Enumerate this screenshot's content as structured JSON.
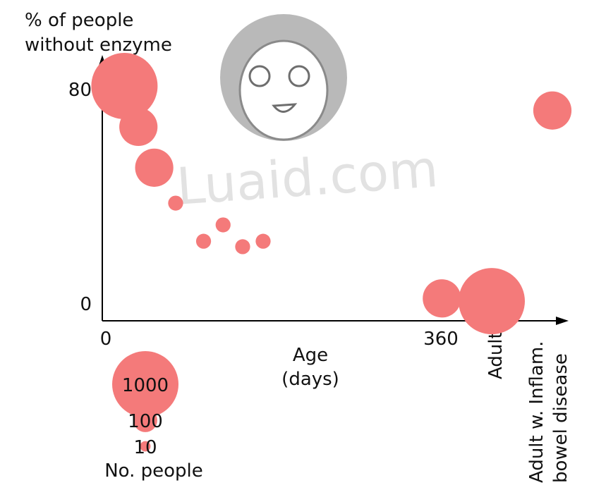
{
  "watermark": "Luaid.com",
  "chart_data": {
    "type": "scatter",
    "title": "",
    "ylabel_line1": "% of people",
    "ylabel_line2": "without enzyme",
    "xlabel_line1": "Age",
    "xlabel_line2": "(days)",
    "y_ticks": [
      "80",
      "0"
    ],
    "x_ticks": [
      "0",
      "360"
    ],
    "x_categories": [
      "Adult",
      "Adult w. Inflam.",
      "bowel disease"
    ],
    "ylim": [
      0,
      80
    ],
    "xlim": [
      0,
      360
    ],
    "marker_color": "#f47a7a",
    "points": [
      {
        "x": 20,
        "y": 80,
        "n": 1000
      },
      {
        "x": 35,
        "y": 65,
        "n": 300
      },
      {
        "x": 52,
        "y": 50,
        "n": 300
      },
      {
        "x": 75,
        "y": 37,
        "n": 30
      },
      {
        "x": 105,
        "y": 23,
        "n": 30
      },
      {
        "x": 126,
        "y": 29,
        "n": 30
      },
      {
        "x": 147,
        "y": 21,
        "n": 30
      },
      {
        "x": 169,
        "y": 23,
        "n": 30
      },
      {
        "x": 361,
        "y": 2,
        "n": 300
      },
      {
        "x": "Adult",
        "y": 1,
        "n": 1000
      },
      {
        "x": "Adult w. Inflam. bowel disease",
        "y": 71,
        "n": 300
      }
    ],
    "size_legend": {
      "title": "No. people",
      "entries": [
        {
          "label": "1000",
          "n": 1000
        },
        {
          "label": "100",
          "n": 100
        },
        {
          "label": "10",
          "n": 10
        }
      ]
    }
  }
}
